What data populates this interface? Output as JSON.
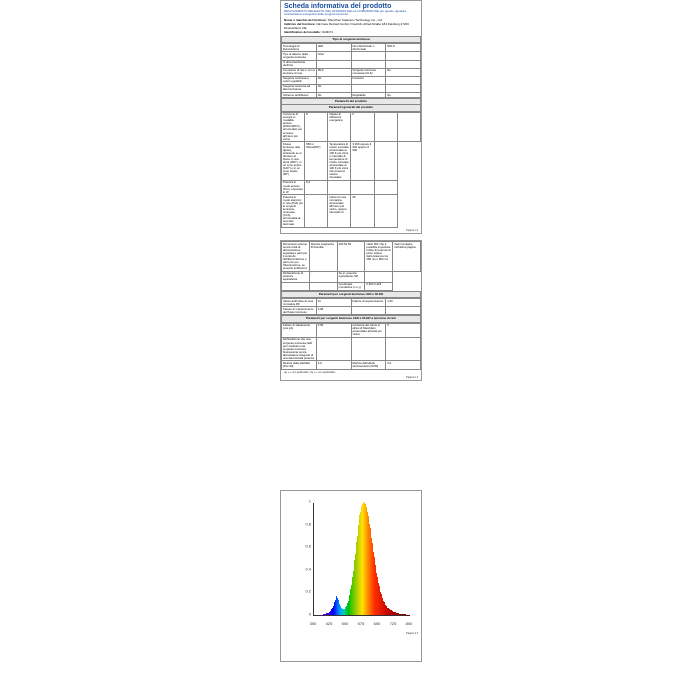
{
  "title": "Scheda informativa del prodotto",
  "subtitle": "REGOLAMENTO DELEGATO (UE) 2019/2015 DELLA COMMISSIONE per quanto riguarda l'etichettatura energetica delle sorgenti luminose",
  "meta": {
    "supplier_label": "Nome o marchio del fornitore:",
    "supplier": "Shenzhen Kalanson Technology Co., Ltd",
    "address_label": "Indirizzo del fornitore:",
    "address": "GE Face ReCard GmbH, Friedrich-Alfred-Straße 184 Duisburg 47226 Deutschland, DE",
    "model_label": "Identificativo del modello:",
    "model": "4G9D71"
  },
  "tables": {
    "page1": {
      "header1": "Tipo di sorgente luminosa",
      "rows1": [
        [
          "Tecnologia di illuminazione",
          "LED",
          "Non direzionale o direzionale",
          "NDLS"
        ],
        [
          "Tipo di attacco della sorgente luminosa",
          "other",
          "",
          ""
        ],
        [
          "O altra interfaccia elettrica",
          "",
          "",
          ""
        ],
        [
          "A tensione di rete o non a tensione di rete",
          "MLS",
          "Sorgente luminosa connessa (CLS)",
          "No"
        ],
        [
          "Sorgente luminosa a colori regolabili",
          "No",
          "Involucro",
          ""
        ],
        [
          "Sorgente luminosa ad alta luminanza",
          "No",
          "",
          ""
        ],
        [
          "Schermo antiriflesso",
          "No",
          "Regolabile",
          "No"
        ]
      ],
      "header2": "Parametri del prodotto",
      "header3": "Parametri generali del prodotto",
      "rows2": [
        [
          "Consumo di energia in modalità acceso (kWh/1000 h), arrotondato per eccesso all'intero più vicino",
          "8",
          "Classe di efficienza energetica",
          "F",
          "",
          ""
        ],
        [
          "Flusso luminoso utile (ɸuse), indicando se si riferisce al flusso in una sfera (360°), in un cono ampio (120°) o in un cono stretto (90°)",
          "650 in Sfera(360°)",
          "Temperatura di colore correlata, arrotondata ai 100 K più vicini, o intervallo di temperature di colore correlate, arrotondate ai 100 K più vicini che possono essere impostate",
          "3 000 oppure 4 000 oppure 5 000",
          ""
        ],
        [
          "Potenza in modo acceso (Pon), espressa in W",
          "8,2",
          "",
          "",
          ""
        ],
        [
          "Potenza in modo stand-by in rete (Psb) per le sorgenti luminose connesse (CLS), arrotondata al secondo decimale",
          "-",
          "Indice di resa cromatica, arrotondato all'intero più vicino, oppure intervallo di",
          "80",
          ""
        ]
      ]
    },
    "page2": {
      "rows1": [
        [
          "Dimensioni esterne senza unità di alimentazione separata e parti per il controllo dell'illuminazione e parti non per l'illuminazione, se presenti (millimetri)",
          "Altezza\nLarghezza\nProfondità",
          "100\n52\n50",
          "valori IRC che è possibile impostare\nIndice di potenza di picco sintesi dell'emissione tra 250 nm e 800 nm",
          "Vedi immagine nell'ultima pagina"
        ],
        [
          "Dichiarazione di potenza equivalente",
          "-",
          "Se sì, potenza equivalente (W)",
          ""
        ],
        [
          "",
          "",
          "Coordinate cromatiche (x e y)",
          "0,503\n0,418"
        ]
      ],
      "header1": "Parametri per sorgenti luminose LED e OLED",
      "rows2": [
        [
          "Valore dell'indice di resa cromatica R9",
          "21",
          "Fattore di sopravvivenza",
          "1,00"
        ],
        [
          "Fattore di mantenimento del flusso luminoso",
          "0,98",
          "",
          ""
        ]
      ],
      "header2": "Parametri per sorgenti luminose LED e OLED a tensione di rete",
      "rows3": [
        [
          "Fattore di sfasamento (cos φ1)",
          "0,56",
          "Costanza del colore in ellissi di MacAdam, arrotondato all'unità più vicina",
          "5"
        ],
        [
          "Dichiarazione che una sorgente luminosa LED può sostituire una sorgente luminosa fluorescente senza alimentatore integrato di una determinata potenza",
          "-",
          "",
          ""
        ],
        [
          "Metrica della sfarfallio [Pst LM]",
          "0,0",
          "Metrica dell'effetto stroboscopico [SVM]",
          "0,0"
        ]
      ],
      "footnotes": "(a)   «-» non applicabile;\n(b)   «-» non applicabile;"
    }
  },
  "footer": "Pagina {n}  3",
  "spectrum": {
    "xlim": [
      350,
      800
    ],
    "ylim": [
      0,
      1.0
    ],
    "xticks": [
      350,
      425,
      500,
      575,
      650,
      725,
      800
    ],
    "yticks": [
      0,
      0.2,
      0.4,
      0.6,
      0.8,
      1.0
    ],
    "stops": [
      {
        "wl": 350,
        "color": "#8a00ff"
      },
      {
        "wl": 400,
        "color": "#5a00d0"
      },
      {
        "wl": 440,
        "color": "#0000ff"
      },
      {
        "wl": 470,
        "color": "#00a0ff"
      },
      {
        "wl": 490,
        "color": "#00d0b0"
      },
      {
        "wl": 510,
        "color": "#00c000"
      },
      {
        "wl": 550,
        "color": "#b0d000"
      },
      {
        "wl": 575,
        "color": "#ffe000"
      },
      {
        "wl": 600,
        "color": "#ff9000"
      },
      {
        "wl": 630,
        "color": "#ff3000"
      },
      {
        "wl": 700,
        "color": "#c00000"
      },
      {
        "wl": 800,
        "color": "#600000"
      }
    ],
    "curve": [
      [
        380,
        0.0
      ],
      [
        400,
        0.01
      ],
      [
        420,
        0.02
      ],
      [
        440,
        0.08
      ],
      [
        450,
        0.14
      ],
      [
        455,
        0.17
      ],
      [
        460,
        0.14
      ],
      [
        470,
        0.08
      ],
      [
        480,
        0.05
      ],
      [
        490,
        0.05
      ],
      [
        500,
        0.08
      ],
      [
        510,
        0.13
      ],
      [
        520,
        0.22
      ],
      [
        530,
        0.34
      ],
      [
        540,
        0.5
      ],
      [
        550,
        0.68
      ],
      [
        560,
        0.85
      ],
      [
        570,
        0.96
      ],
      [
        580,
        1.0
      ],
      [
        590,
        0.98
      ],
      [
        600,
        0.9
      ],
      [
        610,
        0.78
      ],
      [
        620,
        0.64
      ],
      [
        630,
        0.5
      ],
      [
        640,
        0.38
      ],
      [
        650,
        0.28
      ],
      [
        660,
        0.2
      ],
      [
        670,
        0.14
      ],
      [
        680,
        0.1
      ],
      [
        690,
        0.07
      ],
      [
        700,
        0.05
      ],
      [
        720,
        0.03
      ],
      [
        750,
        0.01
      ],
      [
        800,
        0.0
      ]
    ]
  }
}
